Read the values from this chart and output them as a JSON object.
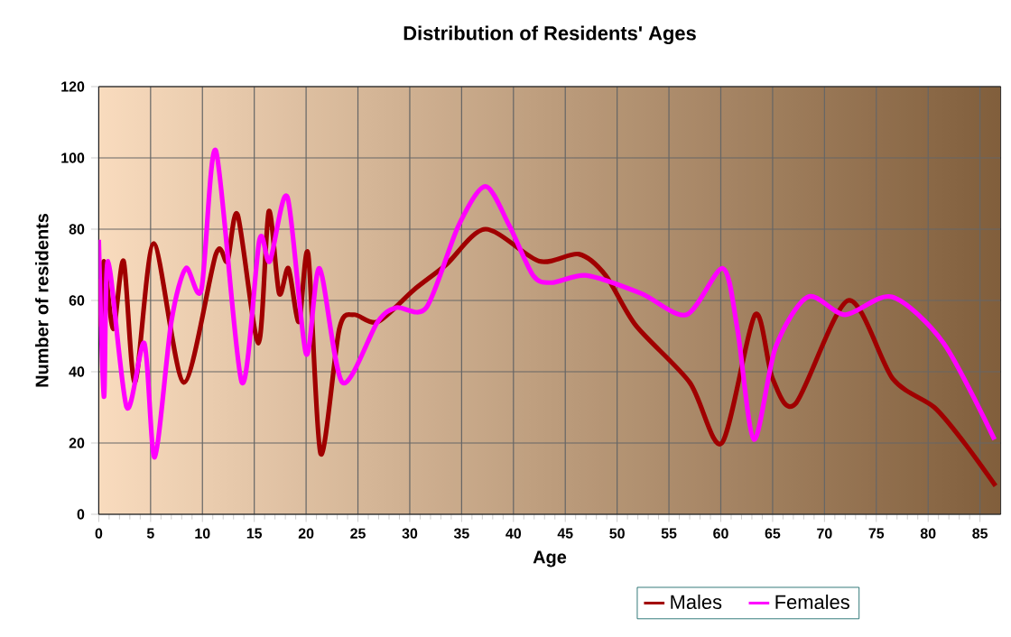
{
  "chart_data": {
    "type": "line",
    "title": "Distribution of Residents' Ages",
    "xlabel": "Age",
    "ylabel": "Number of residents",
    "xlim": [
      0,
      87
    ],
    "ylim": [
      0,
      120
    ],
    "xticks": [
      0,
      5,
      10,
      15,
      20,
      25,
      30,
      35,
      40,
      45,
      50,
      55,
      60,
      65,
      70,
      75,
      80,
      85
    ],
    "yticks": [
      0,
      20,
      40,
      60,
      80,
      100,
      120
    ],
    "grid": true,
    "legend": "bottom",
    "marker": "none",
    "line_style": "solid",
    "series": [
      {
        "name": "Males",
        "color": "#a00000",
        "x": [
          0,
          0.2,
          0.5,
          1.4,
          2.4,
          3.5,
          5.3,
          8.2,
          11.3,
          12.4,
          13.4,
          15.4,
          16.4,
          17.4,
          18.3,
          19.3,
          20.2,
          21.4,
          23.2,
          24.6,
          26.9,
          30.4,
          33.5,
          37.3,
          42.5,
          46.3,
          48.9,
          51.8,
          57,
          60.1,
          63.3,
          65,
          67.2,
          72.3,
          76.6,
          80.6,
          83.5,
          86.5
        ],
        "values": [
          66,
          53,
          71,
          52,
          71,
          37,
          76,
          37,
          73,
          71,
          84,
          48,
          85,
          62,
          69,
          54,
          73,
          17,
          52,
          56,
          54,
          63,
          70,
          80,
          71,
          73,
          67,
          53,
          37,
          20,
          56,
          38,
          31,
          60,
          38,
          30,
          20,
          8
        ]
      },
      {
        "name": "Females",
        "color": "#ff00ff",
        "x": [
          0,
          0.5,
          0.9,
          2.7,
          4.4,
          5.4,
          7,
          8.4,
          9.9,
          11.3,
          13.8,
          15.5,
          16.5,
          18.2,
          20,
          21.3,
          23.5,
          26.9,
          28.7,
          31.6,
          34.7,
          37.3,
          39.6,
          41.9,
          43.7,
          47.1,
          52.3,
          56.7,
          60.2,
          61.6,
          63.2,
          65.3,
          68.4,
          72,
          76.5,
          81.5,
          86.4
        ],
        "values": [
          77,
          33,
          71,
          30,
          48,
          16,
          54,
          69,
          63,
          102,
          37,
          77,
          71,
          89,
          45,
          69,
          37,
          54,
          58,
          58,
          81,
          92,
          81,
          67,
          65,
          67,
          62,
          56,
          69,
          52,
          21,
          47,
          61,
          56,
          61,
          48,
          21
        ]
      }
    ]
  }
}
